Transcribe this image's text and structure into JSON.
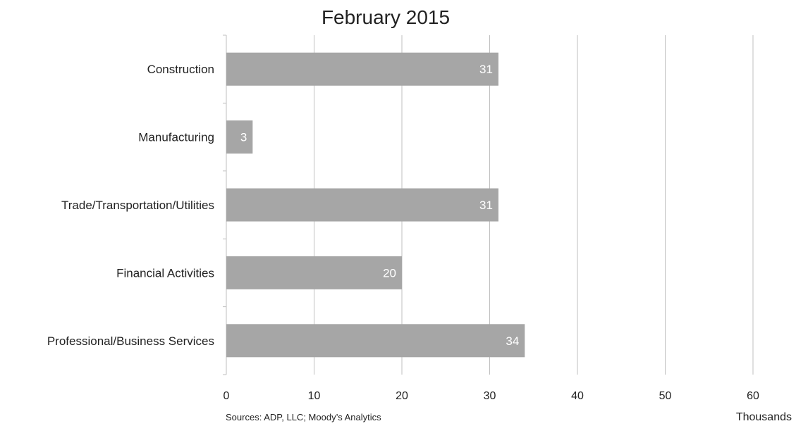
{
  "chart_data": {
    "type": "bar",
    "orientation": "horizontal",
    "title": "February 2015",
    "categories": [
      "Construction",
      "Manufacturing",
      "Trade/Transportation/Utilities",
      "Financial Activities",
      "Professional/Business Services"
    ],
    "values": [
      31,
      3,
      31,
      20,
      34
    ],
    "value_labels": [
      "31",
      "3",
      "31",
      "20",
      "34"
    ],
    "xlim": [
      0,
      60
    ],
    "xticks": [
      0,
      10,
      20,
      30,
      40,
      50,
      60
    ],
    "xlabel": "Thousands",
    "grid": "vertical",
    "legend": "none",
    "bar_color": "#a6a6a6",
    "grid_color": "#bfbfbf",
    "source": "Sources: ADP, LLC; Moody’s Analytics"
  }
}
